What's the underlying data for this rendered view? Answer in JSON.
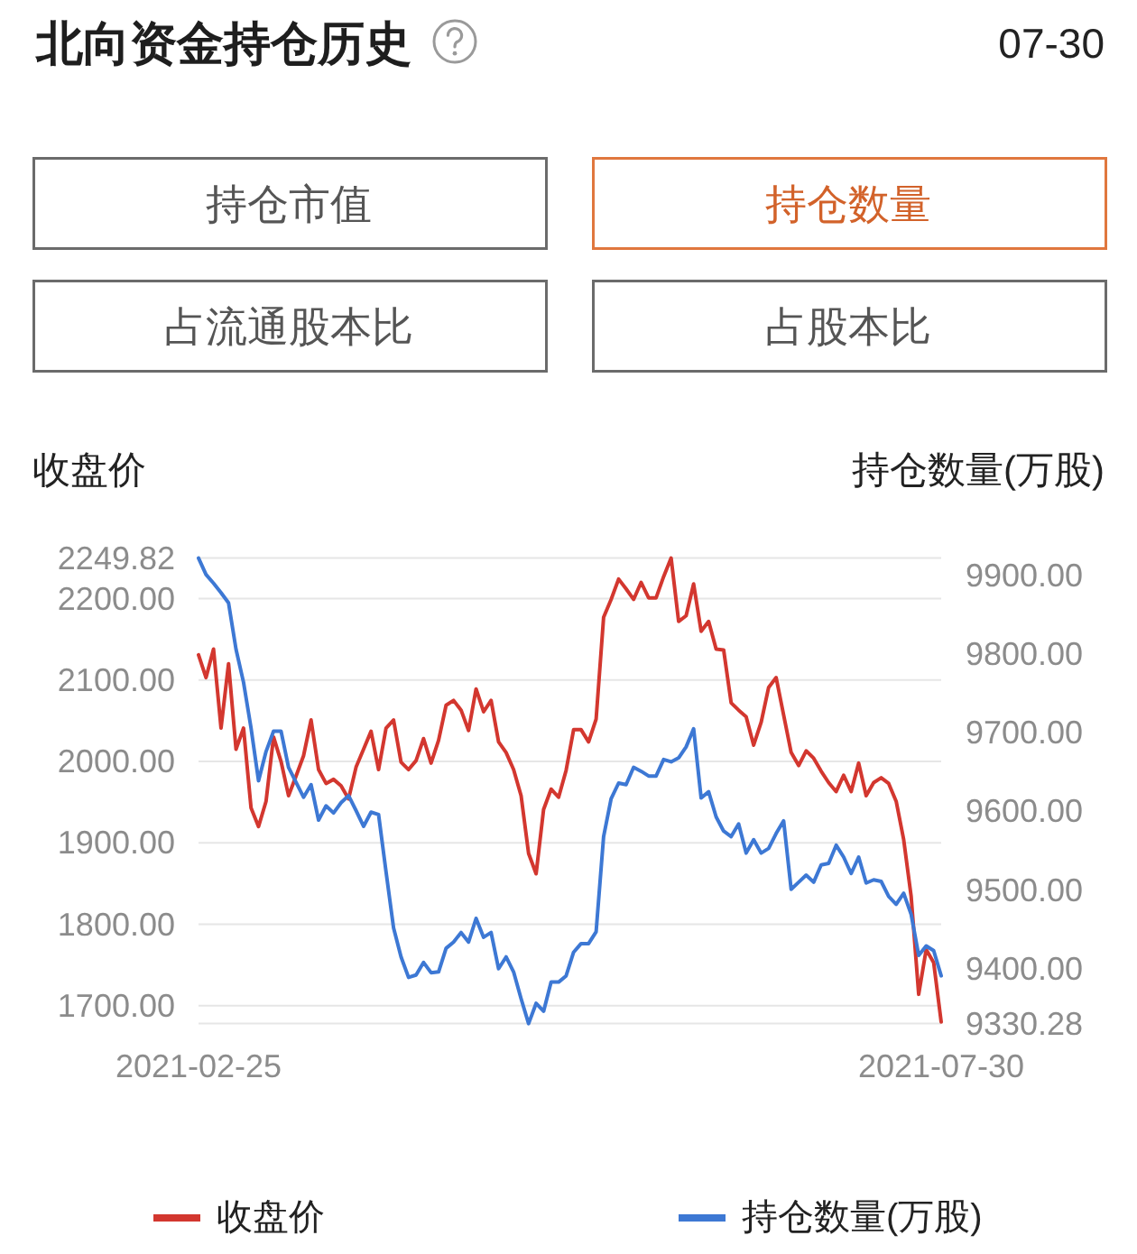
{
  "chart_data": [
    {
      "type": "other",
      "title": "北向资金持仓历史",
      "annotations": [
        "07-30",
        "持仓市值",
        "持仓数量",
        "占流通股本比",
        "占股本比"
      ]
    },
    {
      "type": "line",
      "ylabel": "收盘价",
      "y2label": "持仓数量(万股)",
      "categories": [
        "2021-02-25",
        null,
        null,
        null,
        null,
        null,
        null,
        null,
        null,
        null,
        null,
        null,
        null,
        null,
        null,
        null,
        null,
        null,
        null,
        null,
        null,
        null,
        null,
        null,
        null,
        null,
        null,
        null,
        null,
        null,
        null,
        null,
        null,
        null,
        null,
        null,
        null,
        null,
        null,
        null,
        null,
        null,
        null,
        null,
        null,
        null,
        null,
        null,
        null,
        null,
        null,
        null,
        null,
        null,
        null,
        null,
        null,
        null,
        null,
        null,
        null,
        null,
        null,
        null,
        null,
        null,
        null,
        null,
        null,
        null,
        null,
        null,
        null,
        null,
        null,
        null,
        null,
        null,
        null,
        null,
        null,
        null,
        null,
        null,
        null,
        null,
        null,
        null,
        null,
        null,
        null,
        null,
        null,
        null,
        null,
        null,
        null,
        null,
        null,
        "2021-07-30"
      ],
      "ylim": [
        1678,
        2249.82
      ],
      "yticks": [
        {
          "value": 1700,
          "label": "1700.00"
        },
        {
          "value": 1800,
          "label": "1800.00"
        },
        {
          "value": 1900,
          "label": "1900.00"
        },
        {
          "value": 2000,
          "label": "2000.00"
        },
        {
          "value": 2100,
          "label": "2100.00"
        },
        {
          "value": 2200,
          "label": "2200.00"
        },
        2249.82
      ],
      "y2lim": [
        9330.28,
        9922
      ],
      "y2ticks": [
        9330.28,
        {
          "value": 9400,
          "label": "9400.00"
        },
        {
          "value": 9500,
          "label": "9500.00"
        },
        {
          "value": 9600,
          "label": "9600.00"
        },
        {
          "value": 9700,
          "label": "9700.00"
        },
        {
          "value": 9800,
          "label": "9800.00"
        },
        {
          "value": 9900,
          "label": "9900.00"
        }
      ],
      "grid": "y",
      "legend": "bottom",
      "series": [
        {
          "name": "收盘价",
          "color": "#d3372f",
          "values": [
            2131,
            2103,
            2138,
            2041,
            2120,
            2015,
            2041,
            1943,
            1920,
            1951,
            2030,
            2000,
            1958,
            1982,
            2007,
            2051,
            1990,
            1973,
            1978,
            1970,
            1954,
            1993,
            2015,
            2037,
            1990,
            2041,
            2051,
            1999,
            1990,
            2001,
            2028,
            1998,
            2026,
            2069,
            2075,
            2063,
            2038,
            2089,
            2061,
            2075,
            2024,
            2011,
            1990,
            1958,
            1887,
            1862,
            1941,
            1966,
            1956,
            1989,
            2039,
            2039,
            2024,
            2052,
            2177,
            2199,
            2224,
            2212,
            2199,
            2220,
            2201,
            2201,
            2227,
            2249.82,
            2172,
            2179,
            2218,
            2160,
            2172,
            2138,
            2137,
            2072,
            2063,
            2055,
            2020,
            2048,
            2091,
            2103,
            2057,
            2011,
            1995,
            2013,
            2004,
            1988,
            1974,
            1963,
            1983,
            1963,
            1998,
            1958,
            1974,
            1980,
            1973,
            1951,
            1904,
            1834,
            1714,
            1769,
            1753,
            1680
          ]
        },
        {
          "name": "持仓数量(万股)",
          "color": "#3d78d4",
          "axis": "y2",
          "values": [
            9922,
            9901,
            9890,
            9878,
            9865,
            9806,
            9764,
            9706,
            9639,
            9676,
            9702,
            9702,
            9656,
            9637,
            9618,
            9634,
            9589,
            9607,
            9598,
            9611,
            9620,
            9601,
            9581,
            9599,
            9596,
            9523,
            9452,
            9415,
            9389,
            9392,
            9408,
            9395,
            9396,
            9426,
            9434,
            9446,
            9434,
            9464,
            9440,
            9446,
            9400,
            9415,
            9396,
            9362,
            9330.28,
            9356,
            9346,
            9383,
            9383,
            9391,
            9421,
            9432,
            9432,
            9447,
            9568,
            9616,
            9636,
            9634,
            9656,
            9651,
            9645,
            9645,
            9666,
            9663,
            9668,
            9682,
            9705,
            9617,
            9625,
            9593,
            9575,
            9568,
            9584,
            9547,
            9564,
            9547,
            9553,
            9572,
            9588,
            9501,
            9510,
            9519,
            9510,
            9532,
            9534,
            9557,
            9542,
            9521,
            9542,
            9509,
            9513,
            9511,
            9492,
            9482,
            9496,
            9469,
            9417,
            9429,
            9423,
            9391
          ]
        }
      ]
    }
  ]
}
